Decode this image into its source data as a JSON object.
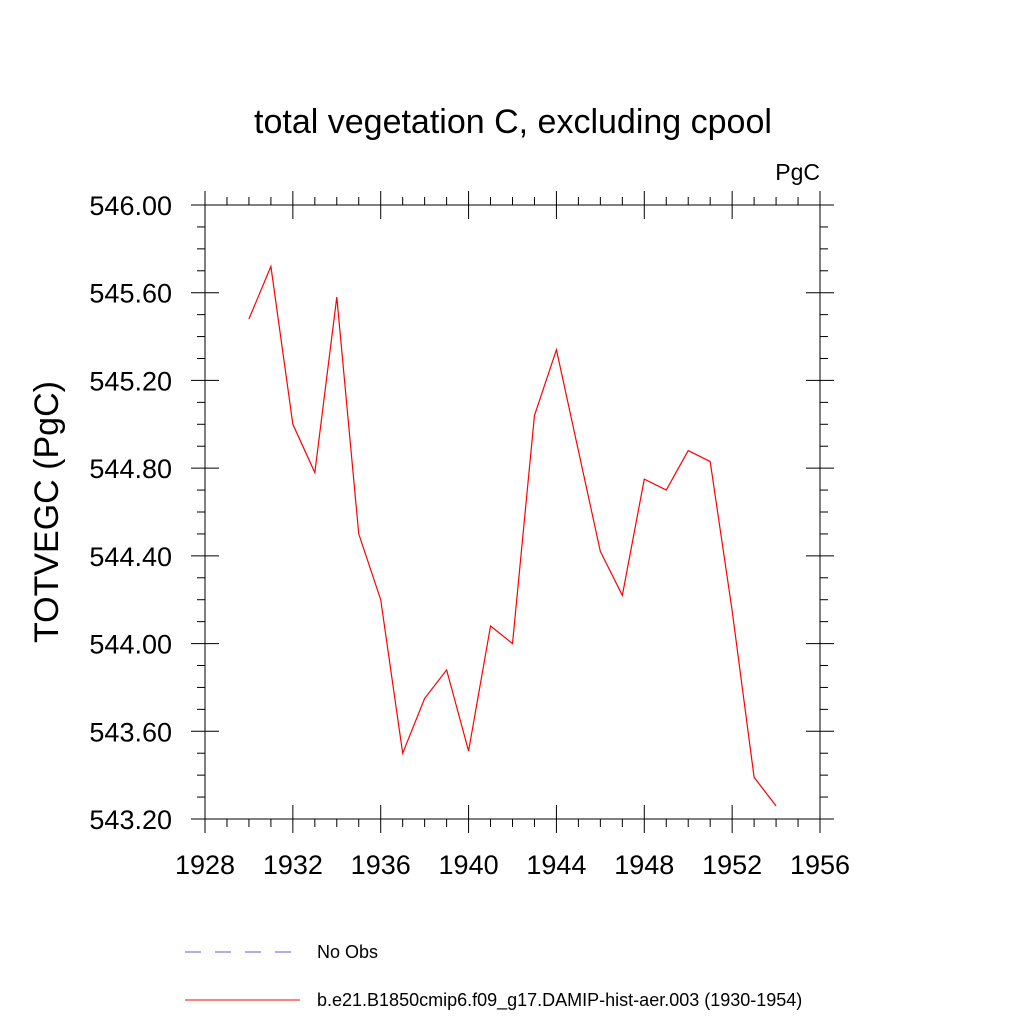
{
  "chart_data": {
    "type": "line",
    "title": "total vegetation C, excluding cpool",
    "units_label": "PgC",
    "ylabel": "TOTVEGC  (PgC)",
    "xlabel": "",
    "xlim": [
      1928,
      1956
    ],
    "ylim": [
      543.2,
      546.0
    ],
    "x_ticks": [
      1928,
      1932,
      1936,
      1940,
      1944,
      1948,
      1952,
      1956
    ],
    "x_tick_labels": [
      "1928",
      "1932",
      "1936",
      "1940",
      "1944",
      "1948",
      "1952",
      "1956"
    ],
    "y_ticks": [
      543.2,
      543.6,
      544.0,
      544.4,
      544.8,
      545.2,
      545.6,
      546.0
    ],
    "y_tick_labels": [
      "543.20",
      "543.60",
      "544.00",
      "544.40",
      "544.80",
      "545.20",
      "545.60",
      "546.00"
    ],
    "grid": false,
    "legend_position": "bottom",
    "series": [
      {
        "name": "b.e21.B1850cmip6.f09_g17.DAMIP-hist-aer.003 (1930-1954)",
        "color": "#ff0000",
        "style": "solid",
        "x": [
          1930,
          1931,
          1932,
          1933,
          1934,
          1935,
          1936,
          1937,
          1938,
          1939,
          1940,
          1941,
          1942,
          1943,
          1944,
          1945,
          1946,
          1947,
          1948,
          1949,
          1950,
          1951,
          1952,
          1953,
          1954
        ],
        "values": [
          545.48,
          545.72,
          545.0,
          544.78,
          545.58,
          544.5,
          544.2,
          543.5,
          543.75,
          543.88,
          543.51,
          544.08,
          544.0,
          545.04,
          545.34,
          544.88,
          544.42,
          544.22,
          544.75,
          544.7,
          544.88,
          544.83,
          544.15,
          543.39,
          543.26
        ]
      }
    ],
    "legend": [
      {
        "label": "No Obs",
        "color": "#6a5acd",
        "style": "dashed"
      },
      {
        "label": "b.e21.B1850cmip6.f09_g17.DAMIP-hist-aer.003 (1930-1954)",
        "color": "#ff0000",
        "style": "solid"
      }
    ]
  }
}
